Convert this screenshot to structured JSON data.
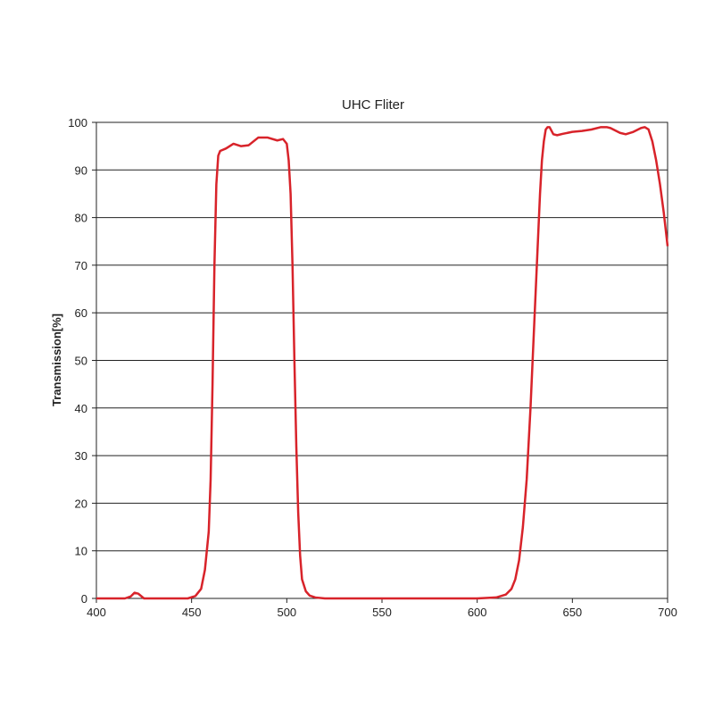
{
  "chart_data": {
    "type": "line",
    "title": "UHC Fliter",
    "y_label": "Transmission[%]",
    "x": [
      400,
      410,
      415,
      418,
      420,
      422,
      425,
      430,
      440,
      448,
      452,
      455,
      457,
      459,
      460,
      461,
      462,
      463,
      464,
      465,
      468,
      472,
      476,
      480,
      485,
      490,
      495,
      498,
      500,
      501,
      502,
      503,
      504,
      505,
      506,
      507,
      508,
      510,
      512,
      515,
      520,
      540,
      560,
      580,
      600,
      610,
      615,
      618,
      620,
      622,
      624,
      626,
      628,
      630,
      632,
      633,
      634,
      635,
      636,
      637,
      638,
      640,
      642,
      645,
      650,
      655,
      660,
      665,
      668,
      670,
      675,
      678,
      682,
      686,
      688,
      690,
      692,
      694,
      696,
      698,
      700
    ],
    "series": [
      {
        "name": null,
        "color": "#d8232a",
        "values": [
          0,
          0,
          0,
          0.4,
          1.2,
          1,
          0,
          0,
          0,
          0,
          0.5,
          2,
          6,
          14,
          25,
          45,
          70,
          87,
          93,
          94,
          94.5,
          95.5,
          95,
          95.2,
          96.8,
          96.8,
          96.2,
          96.5,
          95.5,
          92,
          85,
          70,
          50,
          32,
          18,
          9,
          4,
          1.5,
          0.6,
          0.2,
          0,
          0,
          0,
          0,
          0,
          0.2,
          0.8,
          2,
          4,
          8,
          15,
          25,
          40,
          58,
          76,
          85,
          92,
          96,
          98.5,
          99,
          99,
          97.5,
          97.3,
          97.6,
          98,
          98.2,
          98.5,
          99,
          99,
          98.8,
          97.8,
          97.5,
          98,
          98.8,
          99,
          98.5,
          96,
          92,
          87,
          81,
          74
        ]
      }
    ],
    "xlim": [
      400,
      700
    ],
    "ylim": [
      0,
      100
    ],
    "xticks": [
      400,
      450,
      500,
      550,
      600,
      650,
      700
    ],
    "yticks": [
      0,
      10,
      20,
      30,
      40,
      50,
      60,
      70,
      80,
      90,
      100
    ],
    "grid": true
  }
}
